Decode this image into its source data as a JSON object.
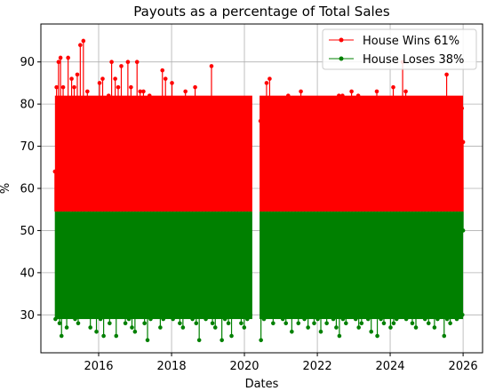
{
  "chart_data": {
    "type": "line",
    "title": "Payouts as a percentage of Total Sales",
    "xlabel": "Dates",
    "ylabel": "%",
    "xlim": [
      "2014-06-01",
      "2026-07-15"
    ],
    "ylim": [
      21,
      99
    ],
    "grid": true,
    "baseline": 54.5,
    "xticks": [
      "2016",
      "2018",
      "2020",
      "2022",
      "2024",
      "2026"
    ],
    "yticks": [
      30,
      40,
      50,
      60,
      70,
      80,
      90
    ],
    "legend": {
      "position": "top-right"
    },
    "gap": [
      "2020-03-20",
      "2020-06-01"
    ],
    "series": [
      {
        "name": "House Wins 61%",
        "color": "#ff0000",
        "x": [
          "2014-10-20",
          "2014-11-05",
          "2014-11-25",
          "2014-12-15",
          "2015-01-10",
          "2015-02-05",
          "2015-03-01",
          "2015-04-05",
          "2015-05-01",
          "2015-06-01",
          "2015-07-01",
          "2015-08-01",
          "2015-09-10",
          "2015-10-01",
          "2015-11-01",
          "2015-12-01",
          "2016-01-10",
          "2016-02-10",
          "2016-03-10",
          "2016-04-10",
          "2016-05-10",
          "2016-06-15",
          "2016-07-15",
          "2016-08-15",
          "2016-09-15",
          "2016-10-20",
          "2016-11-20",
          "2016-12-20",
          "2017-01-20",
          "2017-02-20",
          "2017-03-25",
          "2017-04-25",
          "2017-05-25",
          "2017-06-25",
          "2017-08-01",
          "2017-09-01",
          "2017-10-01",
          "2017-11-01",
          "2017-12-05",
          "2018-01-05",
          "2018-02-10",
          "2018-03-15",
          "2018-04-15",
          "2018-05-20",
          "2018-06-20",
          "2018-07-20",
          "2018-08-25",
          "2018-09-25",
          "2018-10-25",
          "2018-12-01",
          "2019-01-01",
          "2019-02-05",
          "2019-03-05",
          "2019-04-10",
          "2019-05-10",
          "2019-06-10",
          "2019-07-15",
          "2019-08-15",
          "2019-09-15",
          "2019-10-15",
          "2019-11-20",
          "2019-12-20",
          "2020-01-20",
          "2020-02-20",
          "2020-06-10",
          "2020-07-10",
          "2020-08-10",
          "2020-09-10",
          "2020-10-10",
          "2020-11-10",
          "2020-12-10",
          "2021-01-15",
          "2021-02-15",
          "2021-03-15",
          "2021-04-15",
          "2021-05-20",
          "2021-06-20",
          "2021-07-20",
          "2021-08-20",
          "2021-09-25",
          "2021-10-25",
          "2021-11-25",
          "2022-01-01",
          "2022-02-01",
          "2022-03-01",
          "2022-04-01",
          "2022-05-05",
          "2022-06-05",
          "2022-07-05",
          "2022-08-05",
          "2022-09-10",
          "2022-10-10",
          "2022-11-10",
          "2022-12-10",
          "2023-01-15",
          "2023-02-15",
          "2023-03-15",
          "2023-04-15",
          "2023-05-20",
          "2023-06-20",
          "2023-07-20",
          "2023-08-20",
          "2023-09-25",
          "2023-10-25",
          "2023-11-25",
          "2024-01-01",
          "2024-02-01",
          "2024-03-01",
          "2024-04-01",
          "2024-05-05",
          "2024-06-05",
          "2024-07-05",
          "2024-08-05",
          "2024-09-10",
          "2024-10-10",
          "2024-11-10",
          "2024-12-10",
          "2025-01-15",
          "2025-02-15",
          "2025-03-15",
          "2025-04-15",
          "2025-05-20",
          "2025-06-20",
          "2025-07-20",
          "2025-08-20",
          "2025-09-25",
          "2025-10-25",
          "2025-11-25",
          "2025-12-20",
          "2026-01-01"
        ],
        "y": [
          64,
          84,
          90,
          91,
          84,
          80,
          91,
          86,
          84,
          87,
          94,
          95,
          83,
          79,
          81,
          77,
          85,
          86,
          76,
          82,
          90,
          86,
          84,
          89,
          79,
          90,
          84,
          79,
          90,
          83,
          83,
          71,
          82,
          80,
          79,
          76,
          88,
          86,
          73,
          85,
          78,
          76,
          80,
          83,
          78,
          79,
          84,
          73,
          80,
          76,
          80,
          89,
          76,
          81,
          78,
          77,
          80,
          74,
          79,
          78,
          81,
          75,
          74,
          80,
          76,
          75,
          85,
          86,
          81,
          78,
          79,
          78,
          80,
          82,
          73,
          76,
          81,
          83,
          79,
          77,
          75,
          80,
          76,
          73,
          79,
          78,
          81,
          76,
          77,
          82,
          82,
          79,
          80,
          83,
          78,
          82,
          77,
          76,
          79,
          74,
          75,
          83,
          73,
          78,
          72,
          77,
          84,
          76,
          80,
          90,
          83,
          81,
          75,
          79,
          76,
          76,
          78,
          75,
          73,
          78,
          79,
          72,
          77,
          87,
          79,
          78,
          79,
          73,
          79,
          71
        ]
      },
      {
        "name": "House Loses 38%",
        "color": "#008000",
        "x": [
          "2014-10-25",
          "2014-11-15",
          "2014-12-05",
          "2014-12-25",
          "2015-01-20",
          "2015-02-15",
          "2015-03-10",
          "2015-04-15",
          "2015-05-10",
          "2015-06-10",
          "2015-07-10",
          "2015-08-10",
          "2015-09-20",
          "2015-10-10",
          "2015-11-10",
          "2015-12-10",
          "2016-01-20",
          "2016-02-20",
          "2016-03-20",
          "2016-04-20",
          "2016-05-20",
          "2016-06-25",
          "2016-07-25",
          "2016-08-25",
          "2016-09-25",
          "2016-10-30",
          "2016-11-30",
          "2016-12-30",
          "2017-01-30",
          "2017-03-01",
          "2017-04-05",
          "2017-05-05",
          "2017-06-05",
          "2017-07-05",
          "2017-08-10",
          "2017-09-10",
          "2017-10-10",
          "2017-11-10",
          "2017-12-15",
          "2018-01-15",
          "2018-02-20",
          "2018-03-25",
          "2018-04-25",
          "2018-05-30",
          "2018-06-30",
          "2018-07-30",
          "2018-09-05",
          "2018-10-05",
          "2018-11-05",
          "2018-12-10",
          "2019-01-10",
          "2019-02-15",
          "2019-03-15",
          "2019-04-20",
          "2019-05-20",
          "2019-06-20",
          "2019-07-25",
          "2019-08-25",
          "2019-09-25",
          "2019-10-25",
          "2019-11-30",
          "2019-12-30",
          "2020-01-30",
          "2020-03-01",
          "2020-06-15",
          "2020-07-15",
          "2020-08-15",
          "2020-09-15",
          "2020-10-15",
          "2020-11-15",
          "2020-12-15",
          "2021-01-20",
          "2021-02-20",
          "2021-03-20",
          "2021-04-20",
          "2021-05-25",
          "2021-06-25",
          "2021-07-25",
          "2021-08-25",
          "2021-09-30",
          "2021-10-30",
          "2021-11-30",
          "2022-01-05",
          "2022-02-05",
          "2022-03-05",
          "2022-04-05",
          "2022-05-10",
          "2022-06-10",
          "2022-07-10",
          "2022-08-10",
          "2022-09-15",
          "2022-10-15",
          "2022-11-15",
          "2022-12-15",
          "2023-01-20",
          "2023-02-20",
          "2023-03-20",
          "2023-04-20",
          "2023-05-25",
          "2023-06-25",
          "2023-07-25",
          "2023-08-25",
          "2023-09-30",
          "2023-10-30",
          "2023-11-30",
          "2024-01-05",
          "2024-02-05",
          "2024-03-05",
          "2024-04-05",
          "2024-05-10",
          "2024-06-10",
          "2024-07-10",
          "2024-08-10",
          "2024-09-15",
          "2024-10-15",
          "2024-11-15",
          "2024-12-15",
          "2025-01-20",
          "2025-02-20",
          "2025-03-20",
          "2025-04-20",
          "2025-05-25",
          "2025-06-25",
          "2025-07-25",
          "2025-08-25",
          "2025-09-30",
          "2025-10-30",
          "2025-11-30",
          "2025-12-25",
          "2026-01-01"
        ],
        "y": [
          29,
          33,
          28,
          25,
          30,
          27,
          31,
          33,
          29,
          28,
          30,
          32,
          30,
          27,
          31,
          26,
          29,
          25,
          30,
          28,
          33,
          25,
          31,
          30,
          28,
          29,
          27,
          26,
          31,
          30,
          28,
          24,
          29,
          31,
          30,
          27,
          29,
          31,
          32,
          29,
          30,
          28,
          27,
          30,
          31,
          29,
          28,
          24,
          30,
          29,
          31,
          28,
          27,
          30,
          24,
          29,
          28,
          25,
          30,
          31,
          28,
          27,
          29,
          30,
          24,
          29,
          33,
          30,
          28,
          31,
          30,
          29,
          28,
          32,
          26,
          30,
          28,
          31,
          29,
          27,
          30,
          28,
          29,
          26,
          31,
          28,
          30,
          29,
          27,
          25,
          29,
          28,
          30,
          31,
          29,
          27,
          28,
          30,
          29,
          26,
          30,
          25,
          29,
          28,
          30,
          27,
          28,
          29,
          31,
          30,
          29,
          33,
          28,
          27,
          30,
          31,
          29,
          28,
          30,
          27,
          29,
          30,
          25,
          29,
          28,
          30,
          29,
          31,
          30,
          50
        ]
      }
    ]
  }
}
